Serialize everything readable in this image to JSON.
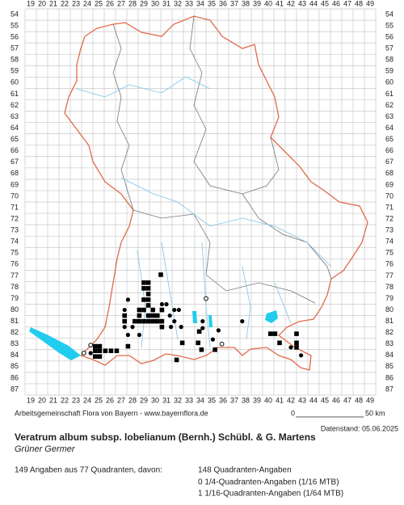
{
  "header": {
    "title": "Veratrum album subsp. lobelianum (Bernh.) Schübl. & G. Martens",
    "subtitle": "Grüner Germer"
  },
  "grid": {
    "columns": [
      19,
      20,
      21,
      22,
      23,
      24,
      25,
      26,
      27,
      28,
      29,
      30,
      31,
      32,
      33,
      34,
      35,
      36,
      37,
      38,
      39,
      40,
      41,
      42,
      43,
      44,
      45,
      46,
      47,
      48,
      49
    ],
    "rows": [
      54,
      55,
      56,
      57,
      58,
      59,
      60,
      61,
      62,
      63,
      64,
      65,
      66,
      67,
      68,
      69,
      70,
      71,
      72,
      73,
      74,
      75,
      76,
      77,
      78,
      79,
      80,
      81,
      82,
      83,
      84,
      85,
      86,
      87
    ]
  },
  "points": {
    "quadrant": [
      [
        30.5,
        76.9
      ],
      [
        29.0,
        77.6
      ],
      [
        29.4,
        77.6
      ],
      [
        29.0,
        78.1
      ],
      [
        29.4,
        78.1
      ],
      [
        29.4,
        78.6
      ],
      [
        29.0,
        79.1
      ],
      [
        29.4,
        79.1
      ],
      [
        29.4,
        79.6
      ],
      [
        28.6,
        80.0
      ],
      [
        29.0,
        80.0
      ],
      [
        29.8,
        80.0
      ],
      [
        30.6,
        80.0
      ],
      [
        27.3,
        80.5
      ],
      [
        28.6,
        80.5
      ],
      [
        29.4,
        80.5
      ],
      [
        29.8,
        80.5
      ],
      [
        30.2,
        80.5
      ],
      [
        27.3,
        81.0
      ],
      [
        28.2,
        81.0
      ],
      [
        28.6,
        81.0
      ],
      [
        29.0,
        81.0
      ],
      [
        29.4,
        81.0
      ],
      [
        29.8,
        81.0
      ],
      [
        30.2,
        81.0
      ],
      [
        30.6,
        81.0
      ],
      [
        30.6,
        81.5
      ],
      [
        33.9,
        81.9
      ],
      [
        32.4,
        82.9
      ],
      [
        33.8,
        82.9
      ],
      [
        34.1,
        83.5
      ],
      [
        35.3,
        83.5
      ],
      [
        31.9,
        84.4
      ],
      [
        40.2,
        82.1
      ],
      [
        40.6,
        82.1
      ],
      [
        41.0,
        82.9
      ],
      [
        42.5,
        82.1
      ],
      [
        42.5,
        82.9
      ],
      [
        42.5,
        83.3
      ],
      [
        24.7,
        83.2
      ],
      [
        25.1,
        83.2
      ],
      [
        24.7,
        83.6
      ],
      [
        25.1,
        83.6
      ],
      [
        25.6,
        83.6
      ],
      [
        26.1,
        83.6
      ],
      [
        26.6,
        83.6
      ],
      [
        27.6,
        83.2
      ],
      [
        25.1,
        84.1
      ],
      [
        24.7,
        84.1
      ]
    ],
    "circle": [
      [
        27.6,
        79.1
      ],
      [
        27.3,
        80.0
      ],
      [
        27.3,
        81.5
      ],
      [
        28.0,
        81.5
      ],
      [
        28.6,
        82.2
      ],
      [
        30.6,
        79.5
      ],
      [
        31.0,
        79.5
      ],
      [
        31.3,
        80.5
      ],
      [
        31.7,
        80.0
      ],
      [
        32.1,
        80.0
      ],
      [
        31.7,
        81.0
      ],
      [
        31.4,
        81.5
      ],
      [
        32.3,
        81.5
      ],
      [
        27.6,
        82.2
      ],
      [
        34.2,
        81.0
      ],
      [
        34.2,
        81.6
      ],
      [
        35.6,
        81.8
      ],
      [
        37.7,
        81.0
      ],
      [
        42.9,
        84.0
      ],
      [
        42.0,
        83.3
      ],
      [
        24.3,
        83.8
      ],
      [
        35.1,
        82.6
      ]
    ],
    "open": [
      [
        34.5,
        79.0
      ],
      [
        24.3,
        83.1
      ],
      [
        23.7,
        83.8
      ],
      [
        35.9,
        83.0
      ]
    ]
  },
  "footer": {
    "credit": "Arbeitsgemeinschaft Flora von Bayern - www.bayernflora.de",
    "scale_start": "0",
    "scale_end": "50 km",
    "date": "Datenstand: 05.06.2025",
    "summary": "149 Angaben aus 77 Quadranten, davon:",
    "details": [
      "148 Quadranten-Angaben",
      "0 1/4-Quadranten-Angaben (1/16 MTB)",
      "1 1/16-Quadranten-Angaben (1/64 MTB)"
    ]
  }
}
